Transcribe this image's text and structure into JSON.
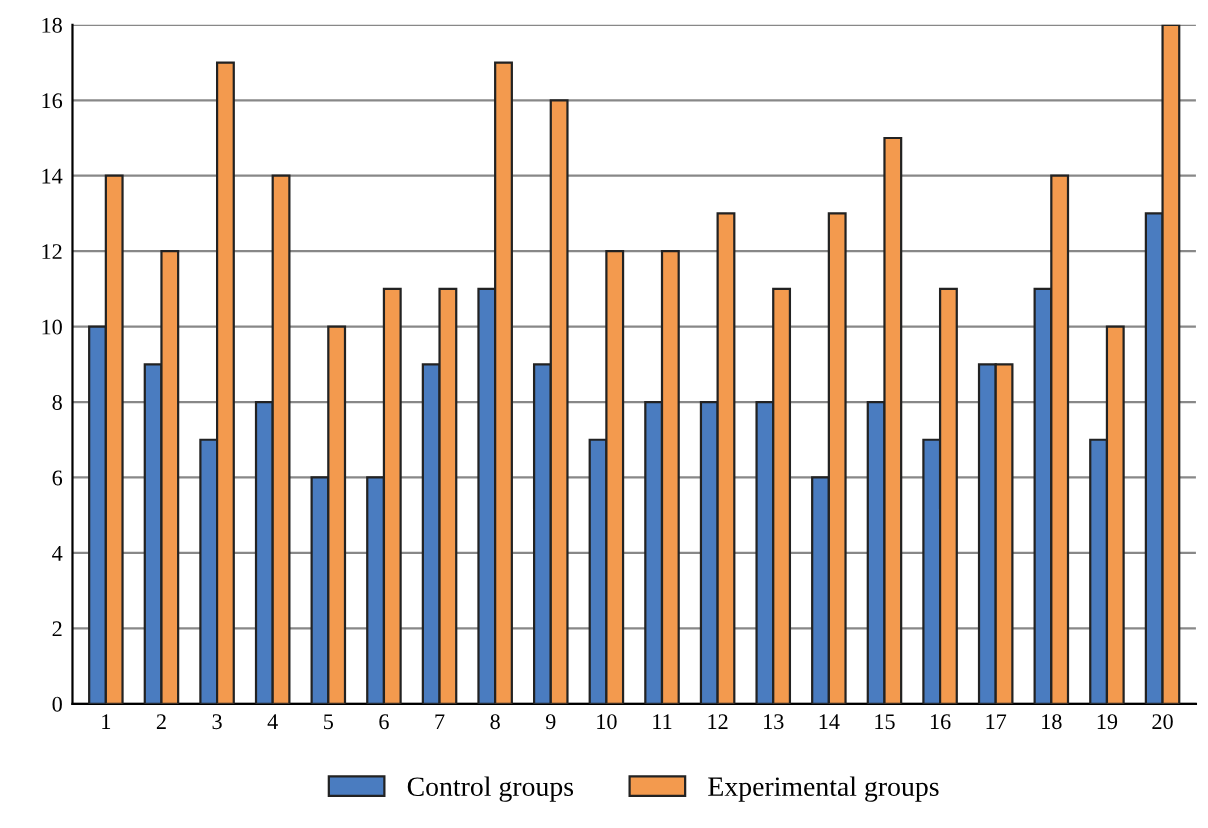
{
  "chart_data": {
    "type": "bar",
    "categories": [
      "1",
      "2",
      "3",
      "4",
      "5",
      "6",
      "7",
      "8",
      "9",
      "10",
      "11",
      "12",
      "13",
      "14",
      "15",
      "16",
      "17",
      "18",
      "19",
      "20"
    ],
    "series": [
      {
        "name": "Control groups",
        "color": "#4a7cc0",
        "values": [
          10,
          9,
          7,
          8,
          6,
          6,
          9,
          11,
          9,
          7,
          8,
          8,
          8,
          6,
          8,
          7,
          9,
          11,
          7,
          13
        ]
      },
      {
        "name": "Experimental groups",
        "color": "#f39a4e",
        "values": [
          14,
          12,
          17,
          14,
          10,
          11,
          11,
          17,
          16,
          12,
          12,
          13,
          11,
          13,
          15,
          11,
          9,
          14,
          10,
          18
        ]
      }
    ],
    "ylim": [
      0,
      18
    ],
    "yticks": [
      0,
      2,
      4,
      6,
      8,
      10,
      12,
      14,
      16,
      18
    ],
    "grid": "y",
    "legend": "bottom"
  }
}
